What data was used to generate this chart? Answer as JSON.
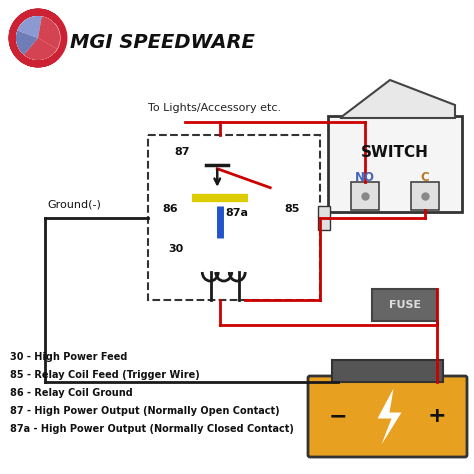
{
  "bg_color": "#ffffff",
  "title": "MGI SPEEDWARE",
  "legend_lines": [
    "30 - High Power Feed",
    "85 - Relay Coil Feed (Trigger Wire)",
    "86 - Relay Coil Ground",
    "87 - High Power Output (Normally Open Contact)",
    "87a - High Power Output (Normally Closed Contact)"
  ],
  "switch_label": "SWITCH",
  "switch_NO_color": "#4466bb",
  "switch_C_color": "#bb7722",
  "fuse_color": "#666666",
  "fuse_text_color": "#dddddd",
  "battery_body_color": "#e8a020",
  "battery_top_color": "#555555",
  "wire_red": "#cc0000",
  "wire_black": "#1a1a1a",
  "wire_yellow": "#ddcc00",
  "wire_blue": "#2255cc",
  "logo_red": "#cc2233",
  "logo_blue": "#5566aa",
  "label_fontsize": 7.5,
  "pin_fontsize": 7.5,
  "legend_fontsize": 7.0
}
